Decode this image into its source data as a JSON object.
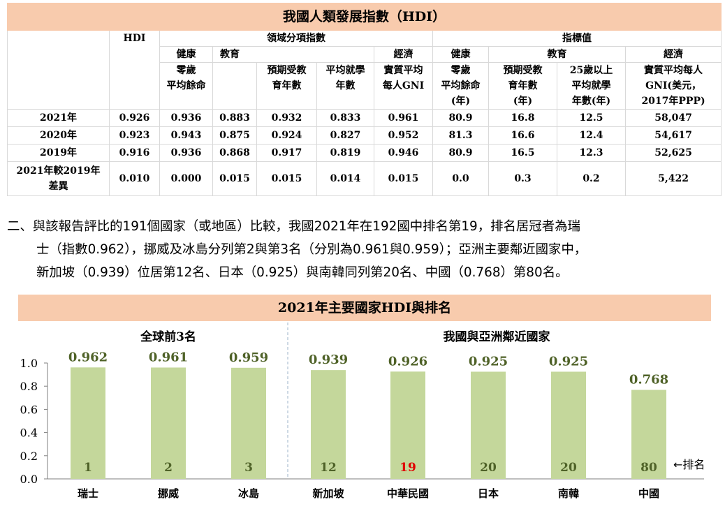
{
  "table": {
    "title": "我國人類發展指數（HDI）",
    "header": {
      "hdi": "HDI",
      "domain_index": "領域分項指數",
      "indicator_value": "指標值",
      "health": "健康",
      "education": "教育",
      "economy": "經濟",
      "life_exp": "零歲平均餘命",
      "life_exp_l1": "零歲",
      "life_exp_l2": "平均餘命",
      "exp_school_l1": "預期受教",
      "exp_school_l2": "育年數",
      "mean_school_l1": "平均就學",
      "mean_school_l2": "年數",
      "gni_l1": "實質平均",
      "gni_l2": "每人GNI",
      "v_life_l1": "零歲",
      "v_life_l2": "平均餘命",
      "v_life_l3": "(年)",
      "v_exp_l1": "預期受教",
      "v_exp_l2": "育年數",
      "v_exp_l3": "(年)",
      "v_mean_l1": "25歲以上",
      "v_mean_l2": "平均就學",
      "v_mean_l3": "年數(年)",
      "v_gni_l1": "實質平均每人",
      "v_gni_l2": "GNI(美元，",
      "v_gni_l3": "2017年PPP)"
    },
    "rows": [
      {
        "label": "2021年",
        "label2": "",
        "hdi": "0.926",
        "health": "0.936",
        "edu": "0.883",
        "exp": "0.932",
        "mean": "0.833",
        "econ": "0.961",
        "v_life": "80.9",
        "v_exp": "16.8",
        "v_mean": "12.5",
        "v_gni": "58,047"
      },
      {
        "label": "2020年",
        "label2": "",
        "hdi": "0.923",
        "health": "0.943",
        "edu": "0.875",
        "exp": "0.924",
        "mean": "0.827",
        "econ": "0.952",
        "v_life": "81.3",
        "v_exp": "16.6",
        "v_mean": "12.4",
        "v_gni": "54,617"
      },
      {
        "label": "2019年",
        "label2": "",
        "hdi": "0.916",
        "health": "0.936",
        "edu": "0.868",
        "exp": "0.917",
        "mean": "0.819",
        "econ": "0.946",
        "v_life": "80.9",
        "v_exp": "16.5",
        "v_mean": "12.3",
        "v_gni": "52,625"
      },
      {
        "label": "2021年較2019年",
        "label2": "差異",
        "hdi": "0.010",
        "health": "0.000",
        "edu": "0.015",
        "exp": "0.015",
        "mean": "0.014",
        "econ": "0.015",
        "v_life": "0.0",
        "v_exp": "0.3",
        "v_mean": "0.2",
        "v_gni": "5,422"
      }
    ]
  },
  "paragraph": {
    "line1": "二、與該報告評比的191個國家（或地區）比較，我國2021年在192國中排名第19，排名居冠者為瑞",
    "line2": "士（指數0.962），挪威及冰島分列第2與第3名（分別為0.961與0.959）；亞洲主要鄰近國家中，",
    "line3": "新加坡（0.939）位居第12名、日本（0.925）與南韓同列第20名、中國（0.768）第80名。"
  },
  "chart_data": {
    "type": "bar",
    "title": "2021年主要國家HDI與排名",
    "groups": [
      {
        "label": "全球前3名",
        "categories": [
          "瑞士",
          "挪威",
          "冰島"
        ]
      },
      {
        "label": "我國與亞洲鄰近國家",
        "categories": [
          "新加坡",
          "中華民國",
          "日本",
          "南韓",
          "中國"
        ]
      }
    ],
    "categories": [
      "瑞士",
      "挪威",
      "冰島",
      "新加坡",
      "中華民國",
      "日本",
      "南韓",
      "中國"
    ],
    "values": [
      0.962,
      0.961,
      0.959,
      0.939,
      0.926,
      0.925,
      0.925,
      0.768
    ],
    "value_labels": [
      "0.962",
      "0.961",
      "0.959",
      "0.939",
      "0.926",
      "0.925",
      "0.925",
      "0.768"
    ],
    "ranks": [
      "1",
      "2",
      "3",
      "12",
      "19",
      "20",
      "20",
      "80"
    ],
    "rank_note": "←排名",
    "highlight_index": 4,
    "yticks": [
      "0.0",
      "0.2",
      "0.4",
      "0.6",
      "0.8",
      "1.0"
    ],
    "ylim": [
      0,
      1.0
    ],
    "grid": false,
    "colors": {
      "bar": "#c4d79b",
      "value_label": "#4f6228",
      "rank": "#4f6228",
      "rank_highlight": "#e00000",
      "title_bg": "#f8cbad",
      "divider": "#9db3c9"
    }
  }
}
